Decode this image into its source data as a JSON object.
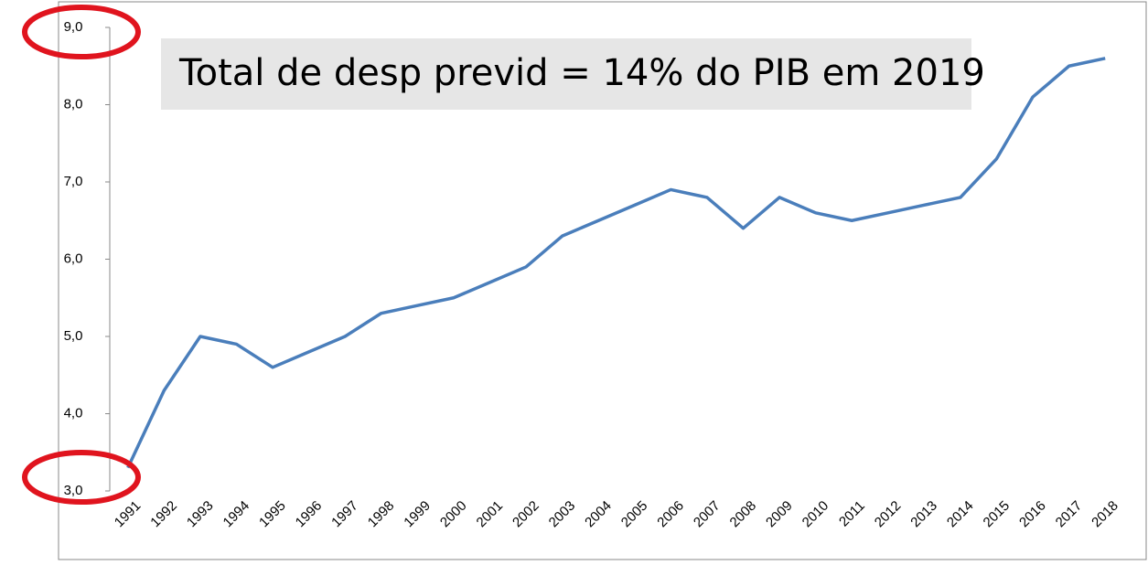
{
  "chart_data": {
    "type": "line",
    "annotation": "Total de desp previd = 14% do PIB em 2019",
    "categories": [
      "1991",
      "1992",
      "1993",
      "1994",
      "1995",
      "1996",
      "1997",
      "1998",
      "1999",
      "2000",
      "2001",
      "2002",
      "2003",
      "2004",
      "2005",
      "2006",
      "2007",
      "2008",
      "2009",
      "2010",
      "2011",
      "2012",
      "2013",
      "2014",
      "2015",
      "2016",
      "2017",
      "2018"
    ],
    "series": [
      {
        "color": "#4a7ebb",
        "values": [
          3.3,
          4.3,
          5.0,
          4.9,
          4.6,
          4.8,
          5.0,
          5.3,
          5.4,
          5.5,
          5.7,
          5.9,
          6.3,
          6.5,
          6.7,
          6.9,
          6.8,
          6.4,
          6.8,
          6.6,
          6.5,
          6.6,
          6.7,
          6.8,
          7.3,
          8.1,
          8.5,
          8.6
        ]
      }
    ],
    "ylim": [
      3,
      9
    ],
    "yticks": [
      {
        "value": 3,
        "label": "3,0"
      },
      {
        "value": 4,
        "label": "4,0"
      },
      {
        "value": 5,
        "label": "5,0"
      },
      {
        "value": 6,
        "label": "6,0"
      },
      {
        "value": 7,
        "label": "7,0"
      },
      {
        "value": 8,
        "label": "8,0"
      },
      {
        "value": 9,
        "label": "9,0"
      }
    ],
    "grid": false
  }
}
